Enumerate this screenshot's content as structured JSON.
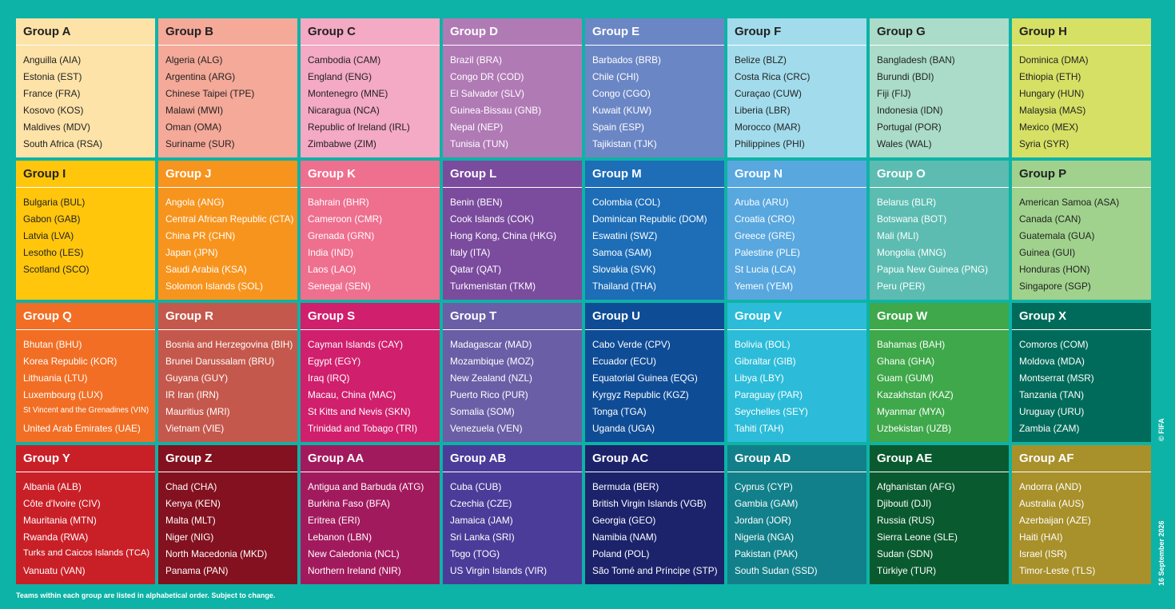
{
  "groups": [
    {
      "name": "Group A",
      "teams": [
        "Anguilla (AIA)",
        "Estonia (EST)",
        "France (FRA)",
        "Kosovo (KOS)",
        "Maldives (MDV)",
        "South Africa (RSA)"
      ]
    },
    {
      "name": "Group B",
      "teams": [
        "Algeria (ALG)",
        "Argentina (ARG)",
        "Chinese Taipei (TPE)",
        "Malawi (MWI)",
        "Oman (OMA)",
        "Suriname (SUR)"
      ]
    },
    {
      "name": "Group C",
      "teams": [
        "Cambodia (CAM)",
        "England (ENG)",
        "Montenegro (MNE)",
        "Nicaragua (NCA)",
        "Republic of Ireland (IRL)",
        "Zimbabwe (ZIM)"
      ]
    },
    {
      "name": "Group D",
      "teams": [
        "Brazil (BRA)",
        "Congo DR (COD)",
        "El Salvador (SLV)",
        "Guinea-Bissau (GNB)",
        "Nepal (NEP)",
        "Tunisia (TUN)"
      ]
    },
    {
      "name": "Group E",
      "teams": [
        "Barbados (BRB)",
        "Chile (CHI)",
        "Congo (CGO)",
        "Kuwait (KUW)",
        "Spain (ESP)",
        "Tajikistan (TJK)"
      ]
    },
    {
      "name": "Group F",
      "teams": [
        "Belize (BLZ)",
        "Costa Rica (CRC)",
        "Curaçao (CUW)",
        "Liberia (LBR)",
        "Morocco (MAR)",
        "Philippines (PHI)"
      ]
    },
    {
      "name": "Group G",
      "teams": [
        "Bangladesh (BAN)",
        "Burundi (BDI)",
        "Fiji (FIJ)",
        "Indonesia (IDN)",
        "Portugal (POR)",
        "Wales (WAL)"
      ]
    },
    {
      "name": "Group H",
      "teams": [
        "Dominica (DMA)",
        "Ethiopia (ETH)",
        "Hungary (HUN)",
        "Malaysia (MAS)",
        "Mexico (MEX)",
        "Syria (SYR)"
      ]
    },
    {
      "name": "Group I",
      "teams": [
        "Bulgaria (BUL)",
        "Gabon (GAB)",
        "Latvia (LVA)",
        "Lesotho (LES)",
        "Scotland (SCO)"
      ]
    },
    {
      "name": "Group J",
      "teams": [
        "Angola (ANG)",
        "Central African Republic (CTA)",
        "China PR (CHN)",
        "Japan (JPN)",
        "Saudi Arabia (KSA)",
        "Solomon Islands (SOL)"
      ]
    },
    {
      "name": "Group K",
      "teams": [
        "Bahrain (BHR)",
        "Cameroon (CMR)",
        "Grenada (GRN)",
        "India (IND)",
        "Laos (LAO)",
        "Senegal (SEN)"
      ]
    },
    {
      "name": "Group L",
      "teams": [
        "Benin (BEN)",
        "Cook Islands (COK)",
        "Hong Kong, China (HKG)",
        "Italy (ITA)",
        "Qatar (QAT)",
        "Turkmenistan (TKM)"
      ]
    },
    {
      "name": "Group M",
      "teams": [
        "Colombia (COL)",
        "Dominican Republic (DOM)",
        "Eswatini (SWZ)",
        "Samoa (SAM)",
        "Slovakia (SVK)",
        "Thailand (THA)"
      ]
    },
    {
      "name": "Group N",
      "teams": [
        "Aruba (ARU)",
        "Croatia (CRO)",
        "Greece (GRE)",
        "Palestine (PLE)",
        "St Lucia (LCA)",
        "Yemen (YEM)"
      ]
    },
    {
      "name": "Group O",
      "teams": [
        "Belarus (BLR)",
        "Botswana (BOT)",
        "Mali (MLI)",
        "Mongolia (MNG)",
        "Papua New Guinea (PNG)",
        "Peru (PER)"
      ]
    },
    {
      "name": "Group P",
      "teams": [
        "American Samoa (ASA)",
        "Canada (CAN)",
        "Guatemala (GUA)",
        "Guinea (GUI)",
        "Honduras (HON)",
        "Singapore (SGP)"
      ]
    },
    {
      "name": "Group Q",
      "teams": [
        "Bhutan (BHU)",
        "Korea Republic (KOR)",
        "Lithuania (LTU)",
        "Luxembourg (LUX)",
        "St Vincent and the Grenadines (VIN)",
        "United Arab Emirates (UAE)"
      ]
    },
    {
      "name": "Group R",
      "teams": [
        "Bosnia and Herzegovina (BIH)",
        "Brunei Darussalam (BRU)",
        "Guyana (GUY)",
        "IR Iran (IRN)",
        "Mauritius (MRI)",
        "Vietnam (VIE)"
      ]
    },
    {
      "name": "Group S",
      "teams": [
        "Cayman Islands (CAY)",
        "Egypt (EGY)",
        "Iraq (IRQ)",
        "Macau, China (MAC)",
        "St Kitts and Nevis (SKN)",
        "Trinidad and Tobago (TRI)"
      ]
    },
    {
      "name": "Group T",
      "teams": [
        "Madagascar (MAD)",
        "Mozambique (MOZ)",
        "New Zealand (NZL)",
        "Puerto Rico (PUR)",
        "Somalia (SOM)",
        "Venezuela (VEN)"
      ]
    },
    {
      "name": "Group U",
      "teams": [
        "Cabo Verde (CPV)",
        "Ecuador (ECU)",
        "Equatorial Guinea (EQG)",
        "Kyrgyz Republic (KGZ)",
        "Tonga (TGA)",
        "Uganda (UGA)"
      ]
    },
    {
      "name": "Group V",
      "teams": [
        "Bolivia (BOL)",
        "Gibraltar (GIB)",
        "Libya (LBY)",
        "Paraguay (PAR)",
        "Seychelles (SEY)",
        "Tahiti (TAH)"
      ]
    },
    {
      "name": "Group W",
      "teams": [
        "Bahamas (BAH)",
        "Ghana (GHA)",
        "Guam (GUM)",
        "Kazakhstan (KAZ)",
        "Myanmar (MYA)",
        "Uzbekistan (UZB)"
      ]
    },
    {
      "name": "Group X",
      "teams": [
        "Comoros (COM)",
        "Moldova (MDA)",
        "Montserrat (MSR)",
        "Tanzania (TAN)",
        "Uruguay (URU)",
        "Zambia (ZAM)"
      ]
    },
    {
      "name": "Group Y",
      "teams": [
        "Albania (ALB)",
        "Côte d'Ivoire (CIV)",
        "Mauritania (MTN)",
        "Rwanda (RWA)",
        "Turks and Caicos Islands (TCA)",
        "Vanuatu (VAN)"
      ]
    },
    {
      "name": "Group Z",
      "teams": [
        "Chad (CHA)",
        "Kenya (KEN)",
        "Malta (MLT)",
        "Niger (NIG)",
        "North Macedonia (MKD)",
        "Panama (PAN)"
      ]
    },
    {
      "name": "Group AA",
      "teams": [
        "Antigua and Barbuda (ATG)",
        "Burkina Faso (BFA)",
        "Eritrea (ERI)",
        "Lebanon (LBN)",
        "New Caledonia (NCL)",
        "Northern Ireland  (NIR)"
      ]
    },
    {
      "name": "Group AB",
      "teams": [
        "Cuba (CUB)",
        "Czechia (CZE)",
        "Jamaica (JAM)",
        "Sri Lanka (SRI)",
        "Togo (TOG)",
        "US Virgin Islands (VIR)"
      ]
    },
    {
      "name": "Group AC",
      "teams": [
        "Bermuda (BER)",
        "British Virgin Islands (VGB)",
        "Georgia (GEO)",
        "Namibia (NAM)",
        "Poland (POL)",
        "São Tomé and Príncipe (STP)"
      ]
    },
    {
      "name": "Group AD",
      "teams": [
        "Cyprus (CYP)",
        "Gambia (GAM)",
        "Jordan (JOR)",
        "Nigeria (NGA)",
        "Pakistan (PAK)",
        "South Sudan (SSD)"
      ]
    },
    {
      "name": "Group AE",
      "teams": [
        "Afghanistan (AFG)",
        "Djibouti (DJI)",
        "Russia (RUS)",
        "Sierra Leone (SLE)",
        "Sudan (SDN)",
        "Türkiye (TUR)"
      ]
    },
    {
      "name": "Group AF",
      "teams": [
        "Andorra (AND)",
        "Australia (AUS)",
        "Azerbaijan (AZE)",
        "Haiti (HAI)",
        "Israel (ISR)",
        "Timor-Leste (TLS)"
      ]
    }
  ],
  "footnote": "Teams within each group are listed in alphabetical order. Subject to change.",
  "date": "16 September 2026",
  "copyright": "© FIFA"
}
